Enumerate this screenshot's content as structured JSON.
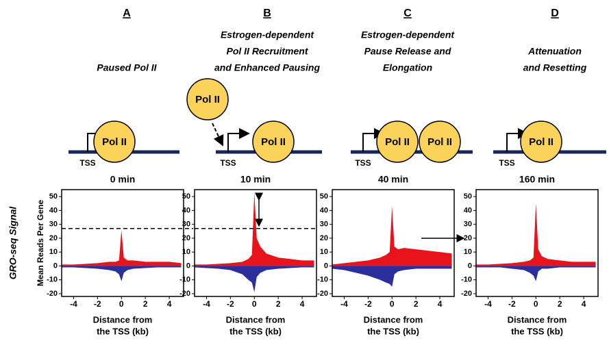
{
  "side_label": "GRO-seq Signal",
  "panels": [
    {
      "letter": "A",
      "heading": [
        "Paused Pol II"
      ],
      "tss": "TSS",
      "pol": [
        "Pol II"
      ]
    },
    {
      "letter": "B",
      "heading": [
        "Estrogen-dependent",
        "Pol II Recruitment",
        "and Enhanced Pausing"
      ],
      "tss": "TSS",
      "pol": [
        "Pol II",
        "Pol II"
      ]
    },
    {
      "letter": "C",
      "heading": [
        "Estrogen-dependent",
        "Pause Release and",
        "Elongation"
      ],
      "tss": "TSS",
      "pol": [
        "Pol II",
        "Pol II"
      ]
    },
    {
      "letter": "D",
      "heading": [
        "Attenuation",
        "and Resetting"
      ],
      "tss": "TSS",
      "pol": [
        "Pol II"
      ]
    }
  ],
  "chart_data": [
    {
      "type": "area",
      "title": "0 min",
      "ylabel": "Mean Reads Per Gene",
      "xlabel": [
        "Distance from",
        "the TSS (kb)"
      ],
      "x": [
        -5,
        -4,
        -3,
        -2,
        -1,
        -0.5,
        -0.2,
        0,
        0.2,
        0.5,
        1,
        2,
        3,
        4,
        5
      ],
      "series": [
        {
          "color": "#e8141c",
          "values": [
            1,
            1,
            1.5,
            2,
            3,
            3,
            4,
            26,
            6,
            4,
            4,
            3,
            3,
            3,
            2
          ]
        },
        {
          "color": "#2b2f9c",
          "values": [
            -1,
            -1,
            -1.5,
            -2,
            -3,
            -4,
            -6,
            -11,
            -5,
            -3,
            -2,
            -1.5,
            -1,
            -1,
            -1
          ]
        }
      ],
      "reference_line": 27,
      "xlim": [
        -5,
        5.2
      ],
      "ylim": [
        -22,
        55
      ],
      "xticks": [
        -4,
        -2,
        0,
        2,
        4
      ],
      "yticks": [
        -20,
        -10,
        0,
        10,
        20,
        30,
        40,
        50
      ]
    },
    {
      "type": "area",
      "title": "10 min",
      "xlabel": [
        "Distance from",
        "the TSS (kb)"
      ],
      "x": [
        -5,
        -4,
        -3,
        -2,
        -1,
        -0.5,
        -0.2,
        0,
        0.2,
        0.5,
        1,
        2,
        3,
        4,
        5
      ],
      "series": [
        {
          "color": "#e8141c",
          "values": [
            1,
            1,
            1.5,
            2,
            3,
            5,
            8,
            53,
            20,
            14,
            9,
            6,
            5,
            4,
            4
          ]
        },
        {
          "color": "#2b2f9c",
          "values": [
            -1,
            -1.5,
            -2,
            -3,
            -6,
            -10,
            -12,
            -19,
            -8,
            -5,
            -3,
            -2,
            -1.5,
            -1,
            -1
          ]
        }
      ],
      "reference_line": 27,
      "xlim": [
        -5,
        5.2
      ],
      "ylim": [
        -22,
        55
      ],
      "xticks": [
        -4,
        -2,
        0,
        2,
        4
      ],
      "yticks": [
        -20,
        -10,
        0,
        10,
        20,
        30,
        40,
        50
      ]
    },
    {
      "type": "area",
      "title": "40 min",
      "xlabel": [
        "Distance from",
        "the TSS (kb)"
      ],
      "x": [
        -5,
        -4,
        -3,
        -2,
        -1,
        -0.5,
        -0.2,
        0,
        0.2,
        0.5,
        1,
        2,
        3,
        4,
        5
      ],
      "series": [
        {
          "color": "#e8141c",
          "values": [
            1,
            2,
            3,
            4,
            6,
            8,
            10,
            43,
            14,
            12,
            13,
            12,
            11,
            10,
            9
          ]
        },
        {
          "color": "#2b2f9c",
          "values": [
            -2,
            -3,
            -5,
            -7,
            -10,
            -12,
            -13,
            -15,
            -6,
            -4,
            -3,
            -2,
            -2,
            -2,
            -2
          ]
        }
      ],
      "xlim": [
        -5,
        5.2
      ],
      "ylim": [
        -22,
        55
      ],
      "xticks": [
        -4,
        -2,
        0,
        2,
        4
      ],
      "yticks": [
        -20,
        -10,
        0,
        10,
        20,
        30,
        40,
        50
      ]
    },
    {
      "type": "area",
      "title": "160 min",
      "xlabel": [
        "Distance from",
        "the TSS (kb)"
      ],
      "x": [
        -5,
        -4,
        -3,
        -2,
        -1,
        -0.5,
        -0.2,
        0,
        0.2,
        0.5,
        1,
        2,
        3,
        4,
        5
      ],
      "series": [
        {
          "color": "#e8141c",
          "values": [
            1,
            1,
            1.5,
            2,
            3,
            4,
            6,
            45,
            12,
            7,
            5,
            4,
            3,
            3,
            3
          ]
        },
        {
          "color": "#2b2f9c",
          "values": [
            -1,
            -1,
            -1,
            -2,
            -3,
            -5,
            -7,
            -11,
            -4,
            -2,
            -2,
            -1,
            -1,
            -1,
            -1
          ]
        }
      ],
      "xlim": [
        -5,
        5.2
      ],
      "ylim": [
        -22,
        55
      ],
      "xticks": [
        -4,
        -2,
        0,
        2,
        4
      ],
      "yticks": [
        -20,
        -10,
        0,
        10,
        20,
        30,
        40,
        50
      ]
    }
  ]
}
